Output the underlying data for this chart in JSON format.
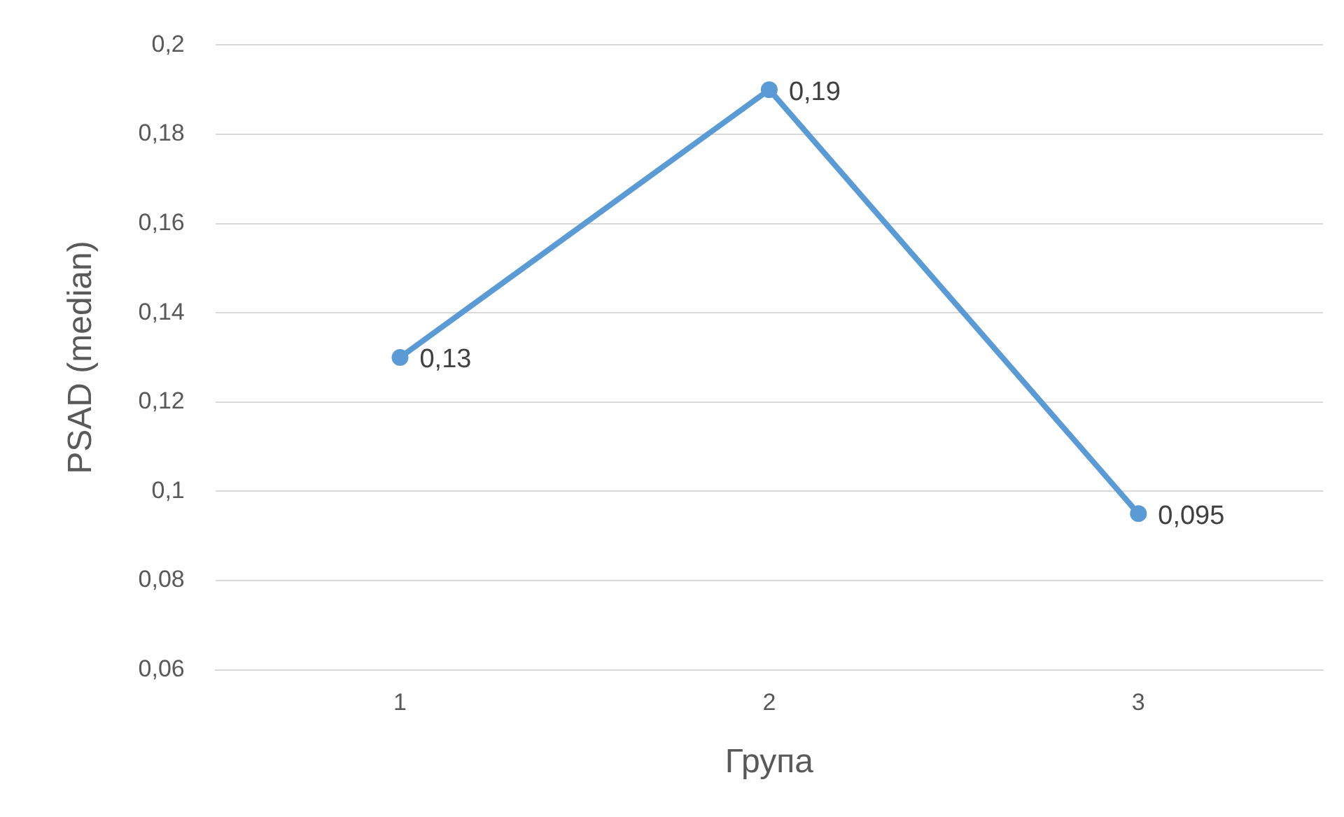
{
  "chart_data": {
    "type": "line",
    "xlabel": "Група",
    "ylabel": "PSAD (median)",
    "categories": [
      "1",
      "2",
      "3"
    ],
    "series": [
      {
        "color": "#5b9bd5",
        "values": [
          0.13,
          0.19,
          0.095
        ],
        "value_labels": [
          "0,13",
          "0,19",
          "0,095"
        ]
      }
    ],
    "ylim": [
      0.06,
      0.2
    ],
    "yticks": [
      {
        "value": 0.06,
        "label": "0,06"
      },
      {
        "value": 0.08,
        "label": "0,08"
      },
      {
        "value": 0.1,
        "label": "0,1"
      },
      {
        "value": 0.12,
        "label": "0,12"
      },
      {
        "value": 0.14,
        "label": "0,14"
      },
      {
        "value": 0.16,
        "label": "0,16"
      },
      {
        "value": 0.18,
        "label": "0,18"
      },
      {
        "value": 0.2,
        "label": "0,2"
      }
    ],
    "grid": "y",
    "marker": "circle",
    "legend": false
  }
}
